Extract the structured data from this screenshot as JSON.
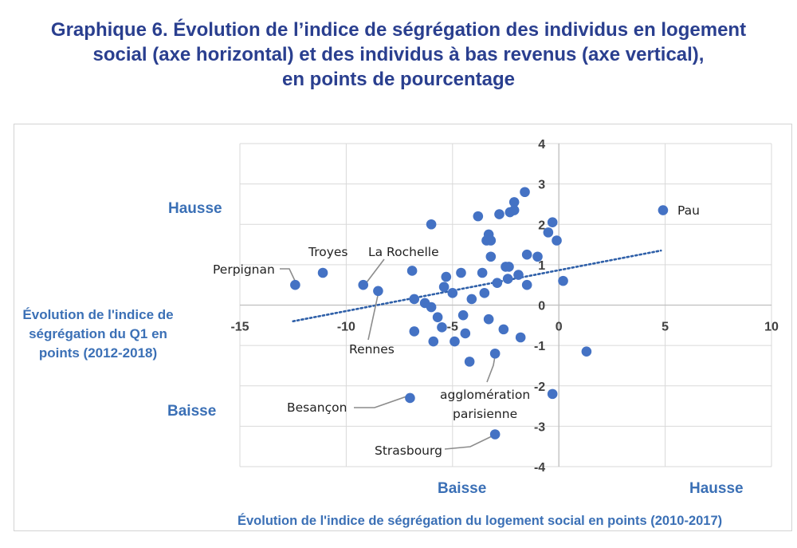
{
  "title": {
    "line1": "Graphique 6. Évolution de l’indice de ségrégation des individus en logement",
    "line2": "social (axe horizontal) et des individus à bas revenus (axe vertical),",
    "line3": "en points de pourcentage"
  },
  "quadrant_labels": {
    "y_up": "Hausse",
    "y_down": "Baisse",
    "x_down": "Baisse",
    "x_up": "Hausse"
  },
  "colors": {
    "points": "#4472c4",
    "trend": "#2e5fa8",
    "labels": "#3b70b6",
    "title": "#2a3f8f",
    "grid": "#d9d9d9"
  },
  "chart_data": {
    "type": "scatter",
    "xlabel": "Évolution de l'indice de ségrégation du logement social en points (2010-2017)",
    "ylabel": "Évolution de l'indice de ségrégation du Q1 en points (2012-2018)",
    "xlim": [
      -15,
      10
    ],
    "ylim": [
      -4,
      4
    ],
    "x_ticks": [
      -15,
      -10,
      -5,
      0,
      5,
      10
    ],
    "y_ticks": [
      -4,
      -3,
      -2,
      -1,
      0,
      1,
      2,
      3,
      4
    ],
    "grid": true,
    "trendline": {
      "style": "dotted",
      "x": [
        -12.5,
        4.8
      ],
      "y": [
        -0.4,
        1.35
      ]
    },
    "points": [
      {
        "x": -12.4,
        "y": 0.5,
        "label": "Perpignan"
      },
      {
        "x": -11.1,
        "y": 0.8,
        "label": "Troyes"
      },
      {
        "x": -9.2,
        "y": 0.5,
        "label": "La Rochelle"
      },
      {
        "x": -8.5,
        "y": 0.35,
        "label": "Rennes"
      },
      {
        "x": -7.0,
        "y": -2.3,
        "label": "Besançon"
      },
      {
        "x": -3.0,
        "y": -1.2,
        "label": "agglomération parisienne"
      },
      {
        "x": -3.0,
        "y": -3.2,
        "label": "Strasbourg"
      },
      {
        "x": 4.9,
        "y": 2.35,
        "label": "Pau"
      },
      {
        "x": -6.0,
        "y": 2.0
      },
      {
        "x": -6.9,
        "y": 0.85
      },
      {
        "x": -6.8,
        "y": 0.15
      },
      {
        "x": -6.3,
        "y": 0.05
      },
      {
        "x": -6.0,
        "y": -0.05
      },
      {
        "x": -6.8,
        "y": -0.65
      },
      {
        "x": -5.9,
        "y": -0.9
      },
      {
        "x": -5.7,
        "y": -0.3
      },
      {
        "x": -5.5,
        "y": -0.55
      },
      {
        "x": -5.4,
        "y": 0.45
      },
      {
        "x": -5.3,
        "y": 0.7
      },
      {
        "x": -5.0,
        "y": 0.3
      },
      {
        "x": -4.9,
        "y": -0.9
      },
      {
        "x": -4.6,
        "y": 0.8
      },
      {
        "x": -4.5,
        "y": -0.25
      },
      {
        "x": -4.4,
        "y": -0.7
      },
      {
        "x": -4.2,
        "y": -1.4
      },
      {
        "x": -4.1,
        "y": 0.15
      },
      {
        "x": -3.8,
        "y": 2.2
      },
      {
        "x": -3.6,
        "y": 0.8
      },
      {
        "x": -3.5,
        "y": 0.3
      },
      {
        "x": -3.4,
        "y": 1.6
      },
      {
        "x": -3.3,
        "y": 1.75
      },
      {
        "x": -3.2,
        "y": 1.6
      },
      {
        "x": -3.3,
        "y": -0.35
      },
      {
        "x": -3.2,
        "y": 1.2
      },
      {
        "x": -2.9,
        "y": 0.55
      },
      {
        "x": -2.8,
        "y": 2.25
      },
      {
        "x": -2.6,
        "y": -0.6
      },
      {
        "x": -2.5,
        "y": 0.95
      },
      {
        "x": -2.4,
        "y": 0.65
      },
      {
        "x": -2.35,
        "y": 0.95
      },
      {
        "x": -2.3,
        "y": 2.3
      },
      {
        "x": -2.1,
        "y": 2.35
      },
      {
        "x": -2.1,
        "y": 2.55
      },
      {
        "x": -1.9,
        "y": 0.75
      },
      {
        "x": -1.8,
        "y": -0.8
      },
      {
        "x": -1.6,
        "y": 2.8
      },
      {
        "x": -1.5,
        "y": 1.25
      },
      {
        "x": -1.5,
        "y": 0.5
      },
      {
        "x": -1.0,
        "y": 1.2
      },
      {
        "x": -0.5,
        "y": 1.8
      },
      {
        "x": -0.3,
        "y": 2.05
      },
      {
        "x": -0.1,
        "y": 1.6
      },
      {
        "x": 0.2,
        "y": 0.6
      },
      {
        "x": 1.3,
        "y": -1.15
      },
      {
        "x": -0.3,
        "y": -2.2
      }
    ]
  }
}
